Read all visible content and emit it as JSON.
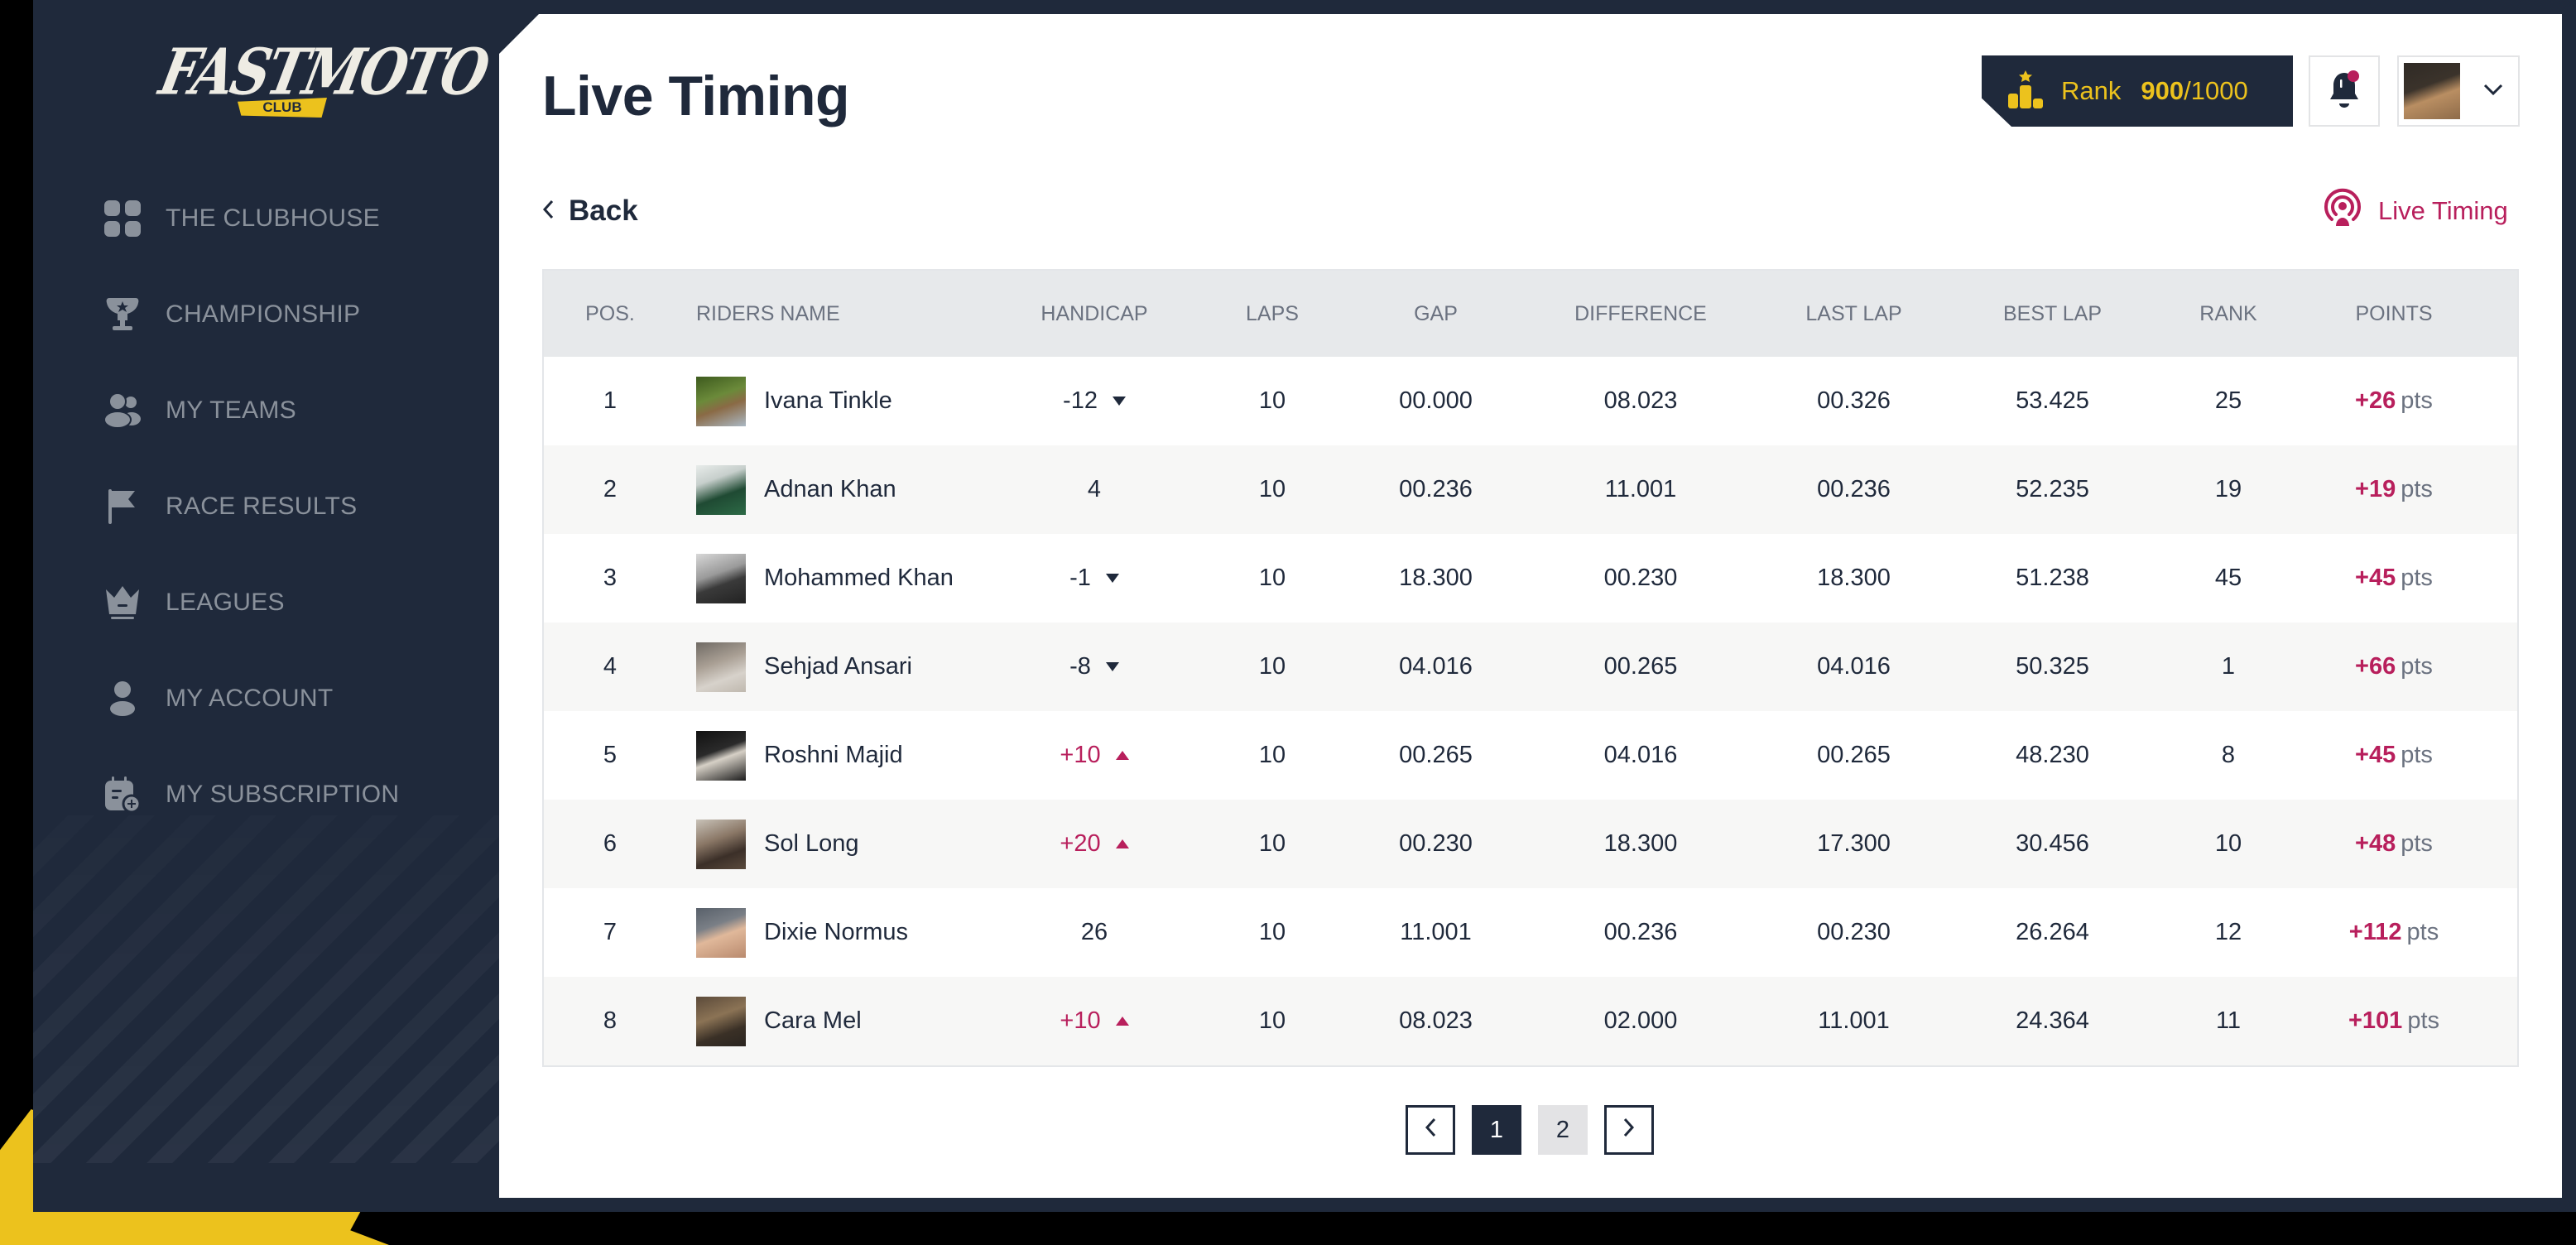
{
  "app": {
    "logo_text": "FASTMOTO",
    "logo_subtext": "CLUB"
  },
  "sidebar": {
    "items": [
      {
        "label": "THE CLUBHOUSE",
        "icon": "grid-icon"
      },
      {
        "label": "CHAMPIONSHIP",
        "icon": "trophy-icon"
      },
      {
        "label": "MY TEAMS",
        "icon": "team-icon"
      },
      {
        "label": "RACE RESULTS",
        "icon": "flag-icon"
      },
      {
        "label": "LEAGUES",
        "icon": "crown-icon"
      },
      {
        "label": "MY ACCOUNT",
        "icon": "user-icon"
      },
      {
        "label": "MY SUBSCRIPTION",
        "icon": "calendar-add-icon"
      }
    ]
  },
  "header": {
    "title": "Live Timing",
    "rank": {
      "label": "Rank",
      "value": "900",
      "max": "/1000"
    },
    "notifications": {
      "has_unread": true
    },
    "colors": {
      "navy": "#1f293b",
      "yellow": "#ecc21d",
      "accent": "#b81f5c"
    }
  },
  "subheader": {
    "back_label": "Back",
    "live_timing_label": "Live Timing"
  },
  "table": {
    "columns": [
      "POS.",
      "RIDERS NAME",
      "HANDICAP",
      "LAPS",
      "GAP",
      "DIFFERENCE",
      "LAST LAP",
      "BEST LAP",
      "RANK",
      "POINTS"
    ],
    "rows": [
      {
        "pos": "1",
        "name": "Ivana Tinkle",
        "handicap": "-12",
        "trend": "down",
        "laps": "10",
        "gap": "00.000",
        "difference": "08.023",
        "last_lap": "00.326",
        "best_lap": "53.425",
        "rank": "25",
        "points": "+26",
        "points_unit": "pts"
      },
      {
        "pos": "2",
        "name": "Adnan Khan",
        "handicap": "4",
        "trend": "none",
        "laps": "10",
        "gap": "00.236",
        "difference": "11.001",
        "last_lap": "00.236",
        "best_lap": "52.235",
        "rank": "19",
        "points": "+19",
        "points_unit": "pts"
      },
      {
        "pos": "3",
        "name": "Mohammed Khan",
        "handicap": "-1",
        "trend": "down",
        "laps": "10",
        "gap": "18.300",
        "difference": "00.230",
        "last_lap": "18.300",
        "best_lap": "51.238",
        "rank": "45",
        "points": "+45",
        "points_unit": "pts"
      },
      {
        "pos": "4",
        "name": "Sehjad Ansari",
        "handicap": "-8",
        "trend": "down",
        "laps": "10",
        "gap": "04.016",
        "difference": "00.265",
        "last_lap": "04.016",
        "best_lap": "50.325",
        "rank": "1",
        "points": "+66",
        "points_unit": "pts"
      },
      {
        "pos": "5",
        "name": "Roshni Majid",
        "handicap": "+10",
        "trend": "up",
        "laps": "10",
        "gap": "00.265",
        "difference": "04.016",
        "last_lap": "00.265",
        "best_lap": "48.230",
        "rank": "8",
        "points": "+45",
        "points_unit": "pts"
      },
      {
        "pos": "6",
        "name": "Sol Long",
        "handicap": "+20",
        "trend": "up",
        "laps": "10",
        "gap": "00.230",
        "difference": "18.300",
        "last_lap": "17.300",
        "best_lap": "30.456",
        "rank": "10",
        "points": "+48",
        "points_unit": "pts"
      },
      {
        "pos": "7",
        "name": "Dixie Normus",
        "handicap": "26",
        "trend": "none",
        "laps": "10",
        "gap": "11.001",
        "difference": "00.236",
        "last_lap": "00.230",
        "best_lap": "26.264",
        "rank": "12",
        "points": "+112",
        "points_unit": "pts"
      },
      {
        "pos": "8",
        "name": "Cara Mel",
        "handicap": "+10",
        "trend": "up",
        "laps": "10",
        "gap": "08.023",
        "difference": "02.000",
        "last_lap": "11.001",
        "best_lap": "24.364",
        "rank": "11",
        "points": "+101",
        "points_unit": "pts"
      }
    ]
  },
  "pagination": {
    "pages": [
      "1",
      "2"
    ],
    "current": "1"
  }
}
